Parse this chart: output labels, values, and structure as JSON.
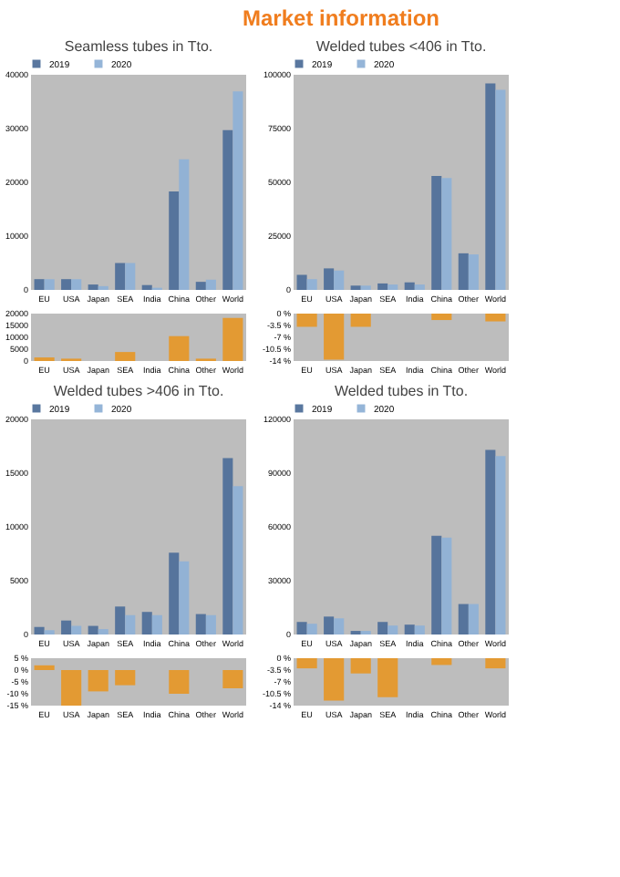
{
  "chart_data": [
    {
      "type": "bar",
      "title": "Seamless tubes in Tto.",
      "annotations": [
        "Market information"
      ],
      "categories": [
        "EU",
        "USA",
        "Japan",
        "SEA",
        "India",
        "China",
        "Other",
        "World"
      ],
      "legend": "top",
      "series": [
        {
          "name": "2019",
          "color": "#50709a",
          "values": [
            2000,
            2000,
            1000,
            5000,
            900,
            18300,
            1500,
            29700
          ]
        },
        {
          "name": "2020",
          "color": "#8fb1d6",
          "values": [
            2000,
            2000,
            700,
            5000,
            400,
            24300,
            1900,
            36900
          ]
        }
      ],
      "ylim": [
        0,
        40000
      ],
      "yticks": [
        0,
        10000,
        20000,
        30000,
        40000
      ]
    },
    {
      "type": "bar",
      "categories": [
        "EU",
        "USA",
        "Japan",
        "SEA",
        "India",
        "China",
        "Other",
        "World"
      ],
      "color": "#e39a33",
      "values": [
        1500,
        1000,
        null,
        3800,
        null,
        10500,
        1000,
        18200
      ],
      "ylim": [
        0,
        20000
      ],
      "yticks": [
        0,
        5000,
        10000,
        15000,
        20000
      ]
    },
    {
      "type": "bar",
      "title": "Welded tubes <406 in Tto.",
      "categories": [
        "EU",
        "USA",
        "Japan",
        "SEA",
        "India",
        "China",
        "Other",
        "World"
      ],
      "legend": "top",
      "series": [
        {
          "name": "2019",
          "color": "#50709a",
          "values": [
            7000,
            10000,
            2000,
            3000,
            3500,
            53000,
            17000,
            96000
          ]
        },
        {
          "name": "2020",
          "color": "#8fb1d6",
          "values": [
            5000,
            9000,
            2000,
            2500,
            2500,
            52000,
            16500,
            93000
          ]
        }
      ],
      "ylim": [
        0,
        100000
      ],
      "yticks": [
        0,
        25000,
        50000,
        75000,
        100000
      ]
    },
    {
      "type": "bar",
      "categories": [
        "EU",
        "USA",
        "Japan",
        "SEA",
        "India",
        "China",
        "Other",
        "World"
      ],
      "color": "#e39a33",
      "values": [
        -3.9,
        -13.6,
        -3.9,
        null,
        null,
        -1.9,
        null,
        -2.3
      ],
      "ylim": [
        -14,
        0
      ],
      "yticks": [
        {
          "value": 0,
          "label": "0 %"
        },
        {
          "value": -3.5,
          "label": "-3.5 %"
        },
        {
          "value": -7,
          "label": "-7 %"
        },
        {
          "value": -10.5,
          "label": "-10.5 %"
        },
        {
          "value": -14,
          "label": "-14 %"
        }
      ]
    },
    {
      "type": "bar",
      "title": "Welded tubes >406 in Tto.",
      "categories": [
        "EU",
        "USA",
        "Japan",
        "SEA",
        "India",
        "China",
        "Other",
        "World"
      ],
      "legend": "top",
      "series": [
        {
          "name": "2019",
          "color": "#50709a",
          "values": [
            700,
            1300,
            800,
            2600,
            2100,
            7600,
            1900,
            16400
          ]
        },
        {
          "name": "2020",
          "color": "#8fb1d6",
          "values": [
            400,
            800,
            500,
            1800,
            1800,
            6800,
            1800,
            13800
          ]
        }
      ],
      "ylim": [
        0,
        20000
      ],
      "yticks": [
        0,
        5000,
        10000,
        15000,
        20000
      ]
    },
    {
      "type": "bar",
      "categories": [
        "EU",
        "USA",
        "Japan",
        "SEA",
        "India",
        "China",
        "Other",
        "World"
      ],
      "color": "#e39a33",
      "values": [
        2,
        -15,
        -9,
        -6.4,
        null,
        -10,
        null,
        -7.7
      ],
      "ylim": [
        -15,
        5
      ],
      "yticks": [
        {
          "value": 5,
          "label": "5 %"
        },
        {
          "value": 0,
          "label": "0 %"
        },
        {
          "value": -5,
          "label": "-5 %"
        },
        {
          "value": -10,
          "label": "-10 %"
        },
        {
          "value": -15,
          "label": "-15 %"
        }
      ]
    },
    {
      "type": "bar",
      "title": "Welded tubes in Tto.",
      "categories": [
        "EU",
        "USA",
        "Japan",
        "SEA",
        "India",
        "China",
        "Other",
        "World"
      ],
      "legend": "top",
      "series": [
        {
          "name": "2019",
          "color": "#50709a",
          "values": [
            7000,
            10000,
            2000,
            7000,
            5500,
            55000,
            17000,
            103000
          ]
        },
        {
          "name": "2020",
          "color": "#8fb1d6",
          "values": [
            6000,
            9000,
            2000,
            5000,
            5000,
            54000,
            17000,
            99500
          ]
        }
      ],
      "ylim": [
        0,
        120000
      ],
      "yticks": [
        0,
        30000,
        60000,
        90000,
        120000
      ]
    },
    {
      "type": "bar",
      "categories": [
        "EU",
        "USA",
        "Japan",
        "SEA",
        "India",
        "China",
        "Other",
        "World"
      ],
      "color": "#e39a33",
      "values": [
        -3,
        -12.5,
        -4.5,
        -11.5,
        null,
        -2,
        null,
        -3
      ],
      "ylim": [
        -14,
        0
      ],
      "yticks": [
        {
          "value": 0,
          "label": "0 %"
        },
        {
          "value": -3.5,
          "label": "-3.5 %"
        },
        {
          "value": -7,
          "label": "-7 %"
        },
        {
          "value": -10.5,
          "label": "-10.5 %"
        },
        {
          "value": -14,
          "label": "-14 %"
        }
      ]
    }
  ]
}
